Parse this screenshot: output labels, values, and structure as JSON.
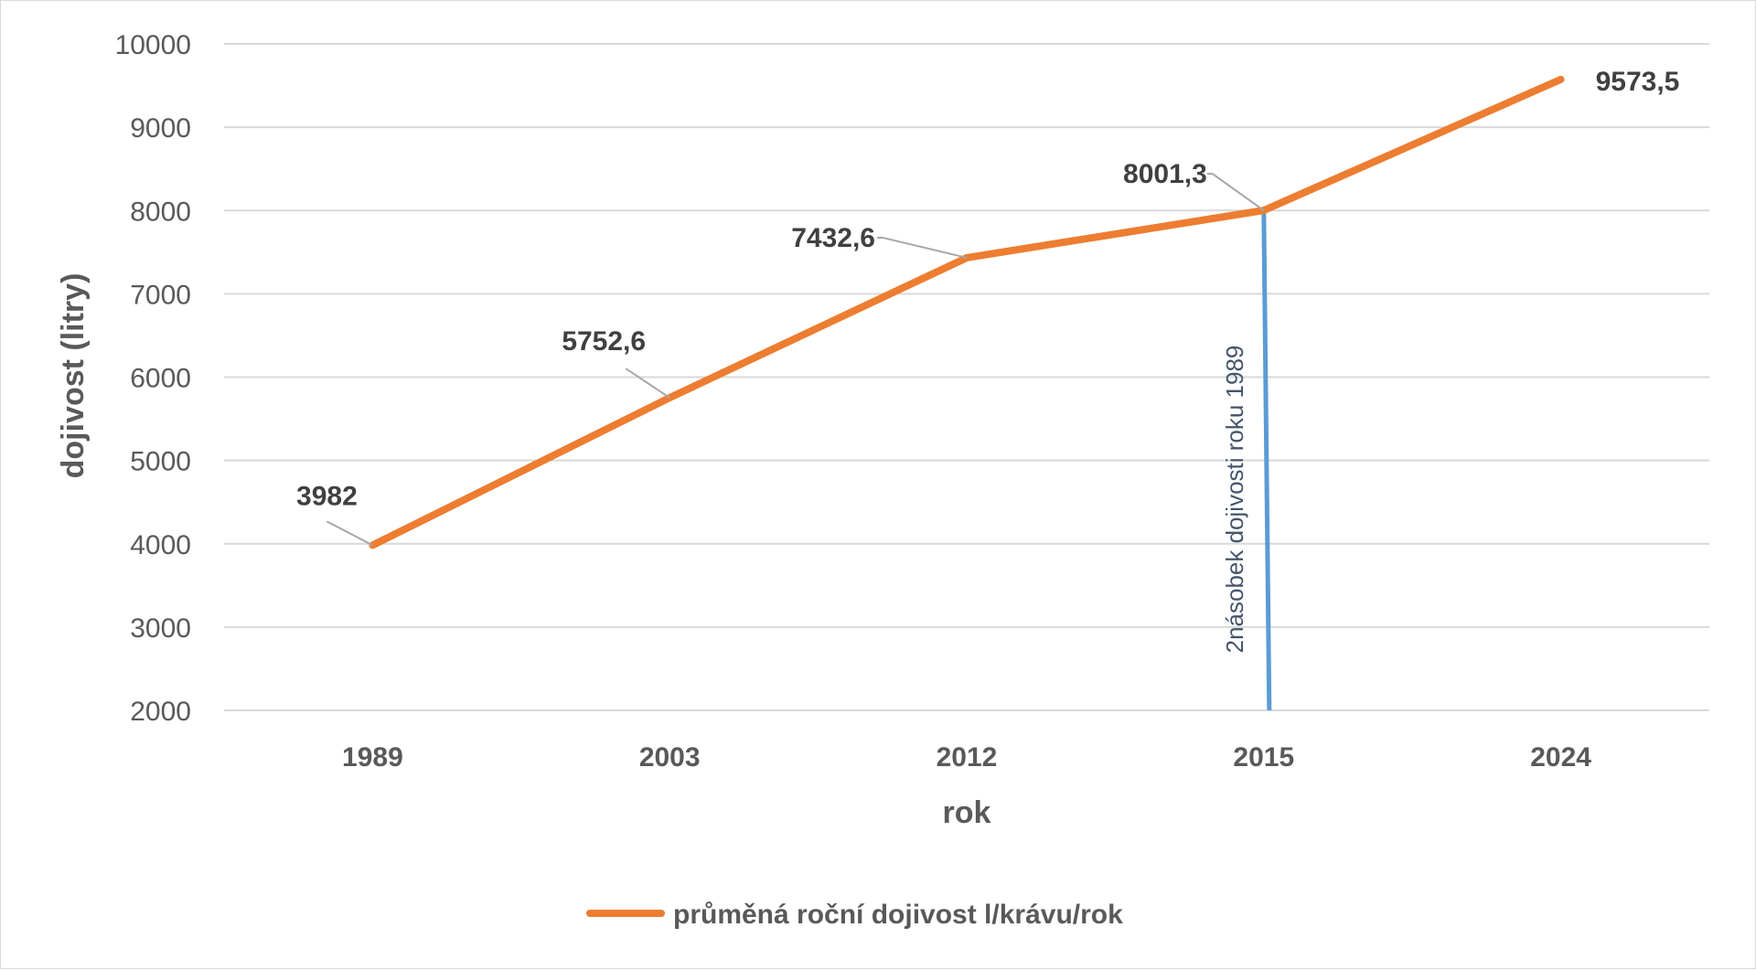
{
  "chart_data": {
    "type": "line",
    "x": [
      "1989",
      "2003",
      "2012",
      "2015",
      "2024"
    ],
    "series": [
      {
        "name": "průměná roční dojivost l/krávu/rok",
        "values": [
          3982,
          5752.6,
          7432.6,
          8001.3,
          9573.5
        ],
        "labels": [
          "3982",
          "5752,6",
          "7432,6",
          "8001,3",
          "9573,5"
        ],
        "color": "#ed7d31"
      }
    ],
    "xlabel": "rok",
    "ylabel": "dojivost (litry)",
    "ylim": [
      2000,
      10000
    ],
    "yticks": [
      "2000",
      "3000",
      "4000",
      "5000",
      "6000",
      "7000",
      "8000",
      "9000",
      "10000"
    ],
    "grid": true,
    "legend_position": "bottom",
    "annotation": {
      "text": "2násobek dojivosti roku 1989",
      "x": "2015",
      "y_top": 8000,
      "y_bottom": 2000,
      "color": "#5b9bd5"
    }
  }
}
